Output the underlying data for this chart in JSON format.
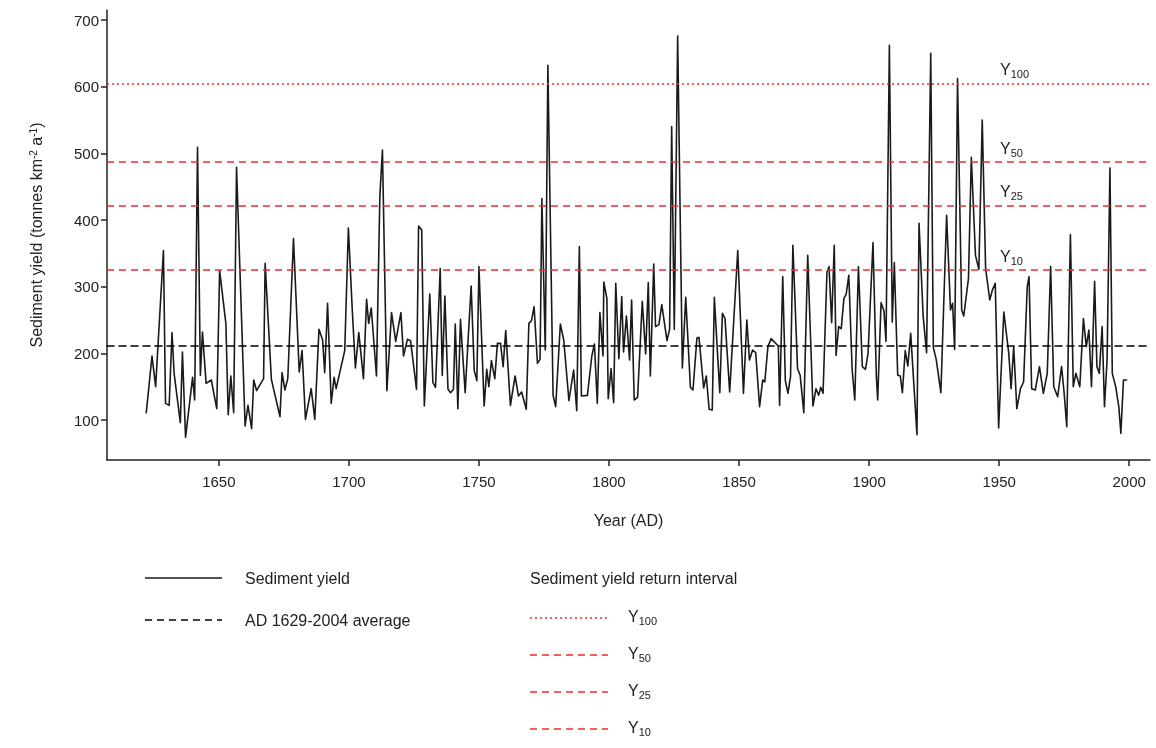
{
  "chart_data": {
    "type": "line",
    "xlabel": "Year (AD)",
    "ylabel": "Sediment yield (tonnes km$^{-2}$ a$^{-1}$)",
    "legend_title": "Sediment yield return interval",
    "legend": "bottom",
    "xlim": [
      1607,
      2008
    ],
    "ylim": [
      40,
      715
    ],
    "xticks": [
      1650,
      1700,
      1750,
      1800,
      1850,
      1900,
      1950,
      2000
    ],
    "yticks": [
      100,
      200,
      300,
      400,
      500,
      600,
      700
    ],
    "grid": false,
    "marker": "none",
    "series": [
      {
        "name": "Sediment yield",
        "color": "#1a1a1a",
        "line_style": "solid",
        "x": [
          1622.1,
          1624.3,
          1625.7,
          1628.7,
          1629.5,
          1630.9,
          1632,
          1632.8,
          1635.2,
          1636,
          1637.2,
          1639.9,
          1640.7,
          1641.8,
          1642.9,
          1643.7,
          1645.1,
          1647.1,
          1649.2,
          1650.3,
          1652.7,
          1653.6,
          1654.6,
          1655.7,
          1656.8,
          1660.1,
          1661.2,
          1662.6,
          1663.4,
          1664.5,
          1667.2,
          1667.8,
          1670.2,
          1673.5,
          1674.3,
          1675.4,
          1676.5,
          1678.7,
          1680.9,
          1682,
          1683.3,
          1685.5,
          1686.9,
          1688.5,
          1689.9,
          1690.7,
          1691.8,
          1693.2,
          1694.3,
          1695.1,
          1698.4,
          1699.8,
          1701.3,
          1702.5,
          1703.8,
          1705.6,
          1706.8,
          1707.6,
          1708.6,
          1710.6,
          1711.9,
          1712.9,
          1714.6,
          1716.4,
          1718,
          1720,
          1721,
          1722.5,
          1723.7,
          1726,
          1726.8,
          1728,
          1729,
          1731.1,
          1732.3,
          1733.3,
          1735.1,
          1735.9,
          1736.9,
          1738.1,
          1739.1,
          1740.2,
          1740.9,
          1741.9,
          1742.9,
          1744.7,
          1747,
          1748.2,
          1749.2,
          1750,
          1752,
          1753,
          1753.8,
          1754.8,
          1756.1,
          1757.1,
          1758.3,
          1759.3,
          1760.3,
          1762.1,
          1763.9,
          1765.2,
          1766.4,
          1768.2,
          1769.2,
          1770.2,
          1771.2,
          1772.5,
          1773.5,
          1774.2,
          1775.5,
          1776.5,
          1778.5,
          1779.5,
          1781.3,
          1782.6,
          1784.6,
          1786.4,
          1787.6,
          1788.6,
          1789.4,
          1791.7,
          1793.4,
          1794.4,
          1795.5,
          1796.5,
          1797.7,
          1798,
          1799.2,
          1799.7,
          1800.8,
          1801.8,
          1802.6,
          1803.8,
          1804.9,
          1805.6,
          1806.7,
          1807.9,
          1808.7,
          1809.7,
          1811,
          1812.8,
          1814.1,
          1815.1,
          1815.9,
          1817.2,
          1817.9,
          1819.2,
          1820.3,
          1822.3,
          1823.3,
          1824.1,
          1825.1,
          1826.4,
          1828.2,
          1829.5,
          1831.3,
          1832.3,
          1833.8,
          1834.6,
          1836.4,
          1837.4,
          1838.5,
          1839.7,
          1840.5,
          1842.6,
          1843.6,
          1844.6,
          1846.4,
          1849.5,
          1851.7,
          1853,
          1854,
          1855.2,
          1856.4,
          1857.9,
          1859.1,
          1859.9,
          1861.1,
          1862.3,
          1865.1,
          1865.6,
          1866.8,
          1867.8,
          1868.8,
          1869.8,
          1870.7,
          1872.5,
          1873.5,
          1874.9,
          1876.4,
          1878.4,
          1879.6,
          1880.6,
          1881.4,
          1882.3,
          1883.8,
          1884.6,
          1885.6,
          1886.6,
          1887.3,
          1888.3,
          1889.3,
          1890.3,
          1891.2,
          1892.2,
          1893.5,
          1894.5,
          1895.9,
          1897.4,
          1898.6,
          1899.6,
          1901.5,
          1902.8,
          1903.3,
          1904.6,
          1905.7,
          1906.5,
          1907.8,
          1908.9,
          1909.7,
          1911,
          1912,
          1912.8,
          1913.9,
          1914.9,
          1916,
          1918.4,
          1919.2,
          1920.8,
          1922.1,
          1923.7,
          1924.7,
          1925.8,
          1927.6,
          1929.8,
          1931.3,
          1932.1,
          1932.9,
          1934,
          1935.6,
          1936.4,
          1938.2,
          1939.3,
          1940.9,
          1942.2,
          1943.5,
          1944.8,
          1946.4,
          1947.4,
          1948.5,
          1949.8,
          1951.8,
          1953.7,
          1954.6,
          1955.6,
          1956.8,
          1958.2,
          1959.4,
          1960.8,
          1961.5,
          1962.5,
          1963.9,
          1965.5,
          1967,
          1968.5,
          1969.8,
          1971,
          1972.5,
          1974,
          1975,
          1976,
          1977.4,
          1978.5,
          1979.5,
          1981,
          1982.4,
          1983.5,
          1984.5,
          1985.5,
          1986.7,
          1987.6,
          1988.5,
          1989.6,
          1990.5,
          1991.5,
          1992.6,
          1993.5,
          1994.8,
          1996,
          1996.8,
          1997.8,
          1999
        ],
        "values": [
          111,
          196,
          150,
          354,
          125,
          122,
          231,
          170,
          96,
          202,
          74,
          164,
          130,
          509,
          167,
          232,
          155,
          160,
          117,
          324,
          245,
          108,
          166,
          111,
          479,
          91,
          122,
          87,
          160,
          144,
          162,
          335,
          161,
          105,
          171,
          145,
          162,
          372,
          172,
          204,
          101,
          147,
          101,
          236,
          220,
          171,
          275,
          125,
          164,
          147,
          204,
          388,
          265,
          178,
          231,
          162,
          281,
          245,
          268,
          166,
          435,
          505,
          144,
          261,
          218,
          261,
          196,
          221,
          219,
          146,
          391,
          385,
          121,
          289,
          156,
          149,
          327,
          167,
          286,
          146,
          141,
          146,
          244,
          117,
          251,
          141,
          301,
          174,
          159,
          330,
          121,
          176,
          150,
          189,
          162,
          215,
          215,
          180,
          234,
          122,
          166,
          136,
          142,
          116,
          245,
          249,
          270,
          185,
          191,
          432,
          205,
          632,
          137,
          120,
          244,
          220,
          129,
          175,
          114,
          360,
          136,
          137,
          196,
          214,
          125,
          261,
          196,
          307,
          282,
          132,
          177,
          126,
          305,
          192,
          285,
          202,
          256,
          190,
          280,
          130,
          134,
          278,
          199,
          306,
          166,
          334,
          240,
          243,
          273,
          219,
          236,
          540,
          236,
          676,
          178,
          284,
          149,
          145,
          223,
          224,
          148,
          166,
          116,
          115,
          284,
          141,
          260,
          252,
          142,
          354,
          140,
          250,
          190,
          205,
          201,
          120,
          160,
          157,
          210,
          222,
          211,
          122,
          315,
          159,
          140,
          165,
          362,
          177,
          167,
          111,
          347,
          121,
          147,
          137,
          149,
          140,
          322,
          330,
          246,
          362,
          197,
          240,
          237,
          282,
          289,
          317,
          175,
          130,
          330,
          180,
          176,
          200,
          366,
          165,
          130,
          276,
          264,
          218,
          662,
          247,
          336,
          167,
          166,
          141,
          204,
          181,
          230,
          78,
          395,
          255,
          201,
          650,
          209,
          191,
          141,
          407,
          265,
          275,
          206,
          612,
          265,
          256,
          312,
          494,
          347,
          326,
          550,
          327,
          280,
          295,
          305,
          88,
          262,
          200,
          147,
          210,
          117,
          147,
          157,
          300,
          315,
          147,
          145,
          180,
          140,
          170,
          330,
          150,
          135,
          180,
          140,
          90,
          378,
          150,
          170,
          150,
          252,
          210,
          235,
          150,
          308,
          180,
          170,
          240,
          120,
          190,
          478,
          170,
          150,
          120,
          80,
          160,
          160
        ]
      },
      {
        "name": "AD 1629-2004 average",
        "color": "#000000",
        "line_style": "dashed",
        "x": [
          1607,
          2008
        ],
        "values": [
          211,
          211
        ]
      }
    ],
    "ref_lines": [
      {
        "axis": "y",
        "value": 605,
        "label": "Y$_{100}$",
        "color": "#ee2c2c",
        "line_style": "dotted"
      },
      {
        "axis": "y",
        "value": 487,
        "label": "Y$_{50}$",
        "color": "#ee2c2c",
        "line_style": "dashed"
      },
      {
        "axis": "y",
        "value": 422,
        "label": "Y$_{25}$",
        "color": "#ee2c2c",
        "line_style": "dashed"
      },
      {
        "axis": "y",
        "value": 325,
        "label": "Y$_{10}$",
        "color": "#ee2c2c",
        "line_style": "dashed"
      }
    ]
  }
}
